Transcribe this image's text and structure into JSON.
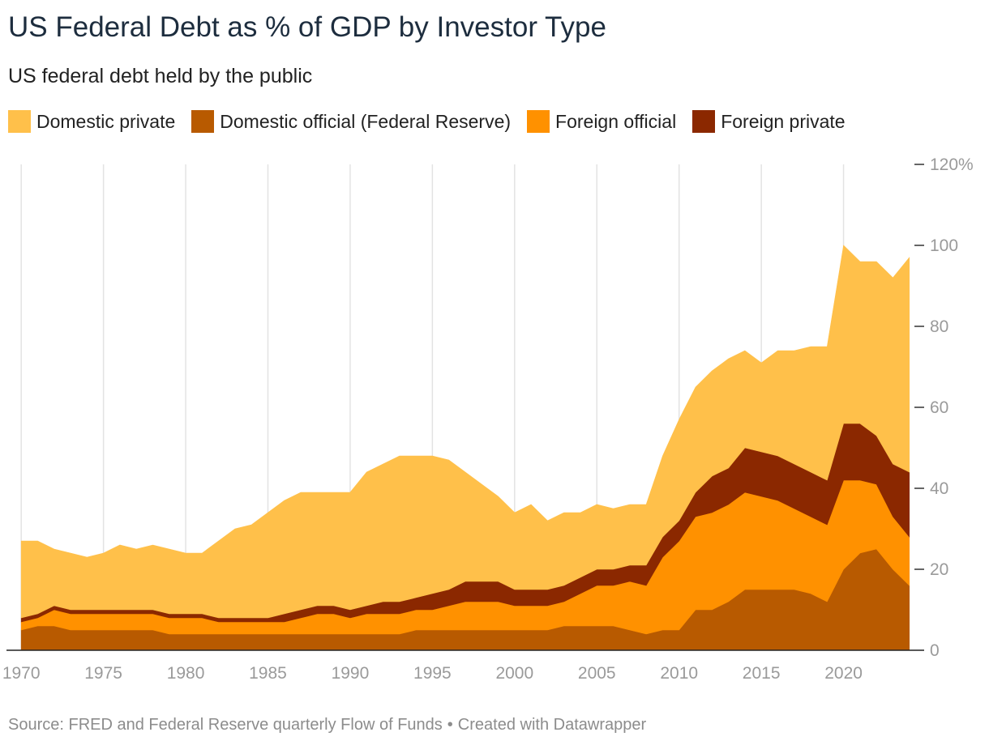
{
  "page": {
    "title": "US Federal Debt as % of GDP by Investor Type",
    "subtitle": "US federal debt held by the public",
    "source": "Source: FRED and Federal Reserve quarterly Flow of Funds",
    "credit": "Created with Datawrapper",
    "separator": "•"
  },
  "chart_data": {
    "type": "area",
    "stacked": true,
    "title": "US Federal Debt as % of GDP by Investor Type",
    "subtitle": "US federal debt held by the public",
    "xlabel": "",
    "ylabel": "",
    "xlim": [
      1969.4,
      2024.9
    ],
    "ylim": [
      0,
      120
    ],
    "x_ticks": [
      1970,
      1975,
      1980,
      1985,
      1990,
      1995,
      2000,
      2005,
      2010,
      2015,
      2020
    ],
    "y_ticks": [
      0,
      20,
      40,
      60,
      80,
      100,
      120
    ],
    "y_tick_labels": [
      "0",
      "20",
      "40",
      "60",
      "80",
      "100",
      "120%"
    ],
    "grid": "vertical",
    "legend_position": "top",
    "x": [
      1970,
      1971,
      1972,
      1973,
      1974,
      1975,
      1976,
      1977,
      1978,
      1979,
      1980,
      1981,
      1982,
      1983,
      1984,
      1985,
      1986,
      1987,
      1988,
      1989,
      1990,
      1991,
      1992,
      1993,
      1994,
      1995,
      1996,
      1997,
      1998,
      1999,
      2000,
      2001,
      2002,
      2003,
      2004,
      2005,
      2006,
      2007,
      2008,
      2009,
      2010,
      2011,
      2012,
      2013,
      2014,
      2015,
      2016,
      2017,
      2018,
      2019,
      2020,
      2021,
      2022,
      2023,
      2024
    ],
    "series": [
      {
        "name": "Domestic official (Federal Reserve)",
        "color": "#b85a00",
        "values": [
          5,
          6,
          6,
          5,
          5,
          5,
          5,
          5,
          5,
          4,
          4,
          4,
          4,
          4,
          4,
          4,
          4,
          4,
          4,
          4,
          4,
          4,
          4,
          4,
          5,
          5,
          5,
          5,
          5,
          5,
          5,
          5,
          5,
          6,
          6,
          6,
          6,
          5,
          4,
          5,
          5,
          10,
          10,
          12,
          15,
          15,
          15,
          15,
          14,
          12,
          20,
          24,
          25,
          20,
          16
        ]
      },
      {
        "name": "Foreign official",
        "color": "#ff9100",
        "values": [
          2,
          2,
          4,
          4,
          4,
          4,
          4,
          4,
          4,
          4,
          4,
          4,
          3,
          3,
          3,
          3,
          3,
          4,
          5,
          5,
          4,
          5,
          5,
          5,
          5,
          5,
          6,
          7,
          7,
          7,
          6,
          6,
          6,
          6,
          8,
          10,
          10,
          12,
          12,
          18,
          22,
          23,
          24,
          24,
          24,
          23,
          22,
          20,
          19,
          19,
          22,
          18,
          16,
          13,
          12
        ]
      },
      {
        "name": "Foreign private",
        "color": "#8b2800",
        "values": [
          1,
          1,
          1,
          1,
          1,
          1,
          1,
          1,
          1,
          1,
          1,
          1,
          1,
          1,
          1,
          1,
          2,
          2,
          2,
          2,
          2,
          2,
          3,
          3,
          3,
          4,
          4,
          5,
          5,
          5,
          4,
          4,
          4,
          4,
          4,
          4,
          4,
          4,
          5,
          5,
          5,
          6,
          9,
          9,
          11,
          11,
          11,
          11,
          11,
          11,
          14,
          14,
          12,
          13,
          16
        ]
      },
      {
        "name": "Domestic private",
        "color": "#ffc04a",
        "values": [
          19,
          18,
          14,
          14,
          13,
          14,
          16,
          15,
          16,
          16,
          15,
          15,
          19,
          22,
          23,
          26,
          28,
          29,
          28,
          28,
          29,
          33,
          34,
          36,
          35,
          34,
          32,
          27,
          24,
          21,
          19,
          21,
          17,
          18,
          16,
          16,
          15,
          15,
          15,
          20,
          25,
          26,
          26,
          27,
          24,
          22,
          26,
          28,
          31,
          33,
          44,
          40,
          43,
          46,
          53
        ]
      }
    ],
    "legend_order": [
      "Domestic private",
      "Domestic official (Federal Reserve)",
      "Foreign official",
      "Foreign private"
    ]
  }
}
